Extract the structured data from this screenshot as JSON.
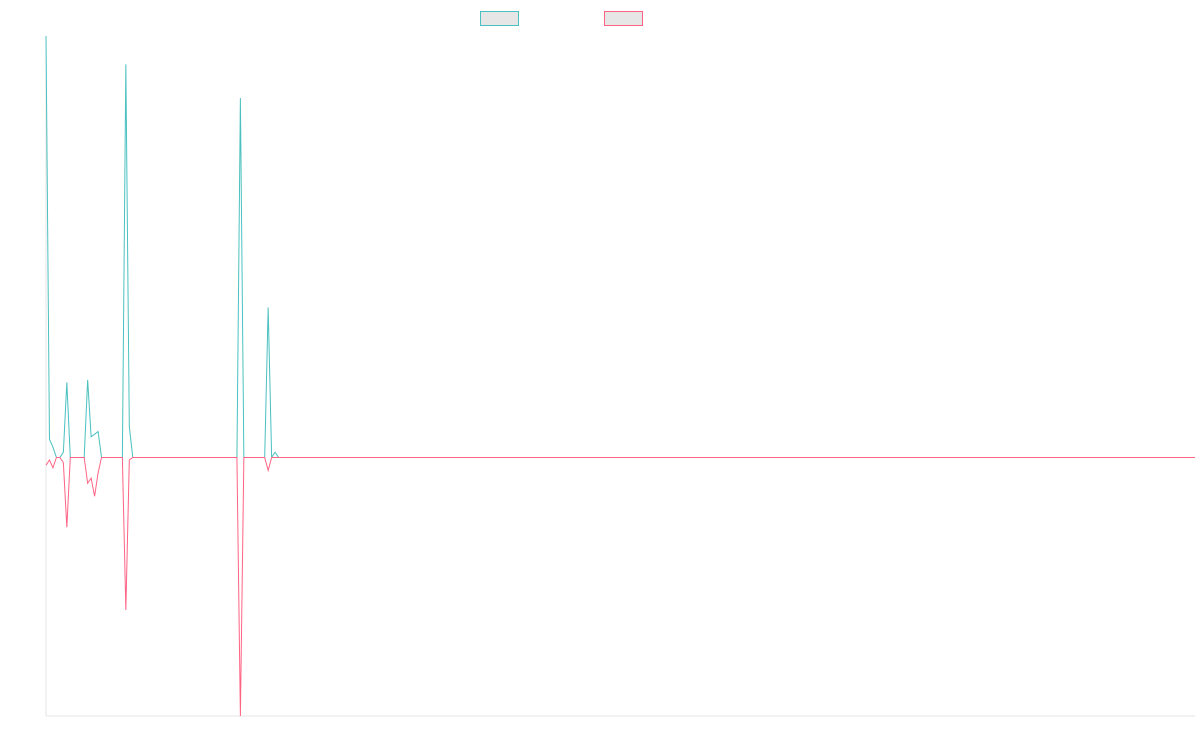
{
  "chart_data": {
    "type": "line",
    "title": "",
    "xlabel": "",
    "ylabel": "",
    "grid": false,
    "legend_position": "top-center",
    "ylim": [
      -1,
      1.63
    ],
    "x_count": 332,
    "series": [
      {
        "color": "#4bc0c0",
        "fill": "#e6e6e6",
        "points": [
          [
            0,
            1.63
          ],
          [
            1,
            0.07
          ],
          [
            2,
            0.04
          ],
          [
            3,
            0.0
          ],
          [
            4,
            0.0
          ],
          [
            5,
            0.02
          ],
          [
            6,
            0.29
          ],
          [
            7,
            0.0
          ],
          [
            8,
            0.0
          ],
          [
            9,
            0.0
          ],
          [
            10,
            0.0
          ],
          [
            11,
            0.0
          ],
          [
            12,
            0.3
          ],
          [
            13,
            0.08
          ],
          [
            14,
            0.09
          ],
          [
            15,
            0.1
          ],
          [
            16,
            0.0
          ],
          [
            17,
            0.0
          ],
          [
            18,
            0.0
          ],
          [
            19,
            0.0
          ],
          [
            20,
            0.0
          ],
          [
            21,
            0.0
          ],
          [
            22,
            0.0
          ],
          [
            23,
            1.52
          ],
          [
            24,
            0.12
          ],
          [
            25,
            0.0
          ],
          [
            55,
            0.0
          ],
          [
            56,
            1.39
          ],
          [
            57,
            0.0
          ],
          [
            63,
            0.0
          ],
          [
            64,
            0.58
          ],
          [
            65,
            0.0
          ],
          [
            66,
            0.02
          ],
          [
            67,
            0.0
          ],
          [
            331,
            0.0
          ]
        ]
      },
      {
        "color": "#ff6384",
        "fill": "#e6e6e6",
        "points": [
          [
            0,
            -0.03
          ],
          [
            1,
            -0.01
          ],
          [
            2,
            -0.04
          ],
          [
            3,
            0.0
          ],
          [
            4,
            0.0
          ],
          [
            5,
            -0.02
          ],
          [
            6,
            -0.27
          ],
          [
            7,
            0.0
          ],
          [
            8,
            0.0
          ],
          [
            9,
            0.0
          ],
          [
            10,
            0.0
          ],
          [
            11,
            0.0
          ],
          [
            12,
            -0.1
          ],
          [
            13,
            -0.08
          ],
          [
            14,
            -0.15
          ],
          [
            15,
            -0.06
          ],
          [
            16,
            0.0
          ],
          [
            17,
            0.0
          ],
          [
            18,
            0.0
          ],
          [
            19,
            0.0
          ],
          [
            20,
            0.0
          ],
          [
            21,
            0.0
          ],
          [
            22,
            0.0
          ],
          [
            23,
            -0.59
          ],
          [
            24,
            -0.01
          ],
          [
            25,
            0.0
          ],
          [
            55,
            0.0
          ],
          [
            56,
            -1.0
          ],
          [
            57,
            0.0
          ],
          [
            63,
            0.0
          ],
          [
            64,
            -0.05
          ],
          [
            65,
            0.0
          ],
          [
            66,
            0.0
          ],
          [
            67,
            0.0
          ],
          [
            331,
            0.0
          ]
        ]
      }
    ]
  }
}
